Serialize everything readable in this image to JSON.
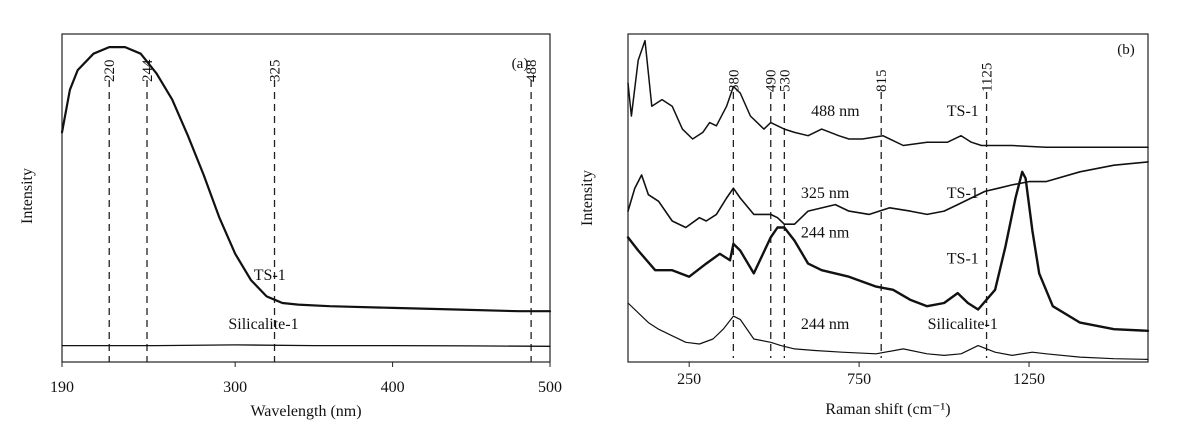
{
  "chart_data": [
    {
      "type": "line",
      "panel_label": "(a)",
      "xlabel": "Wavelength (nm)",
      "ylabel": "Intensity",
      "xlim": [
        190,
        500
      ],
      "ylim": [
        0,
        1
      ],
      "xticks": [
        190,
        300,
        400,
        500
      ],
      "xtick_labels": [
        "190",
        "300",
        "400",
        "500"
      ],
      "series": [
        {
          "name": "TS-1",
          "x": [
            190,
            195,
            200,
            210,
            220,
            230,
            240,
            250,
            260,
            270,
            280,
            290,
            300,
            310,
            320,
            325,
            330,
            340,
            360,
            400,
            440,
            480,
            500
          ],
          "y": [
            0.7,
            0.83,
            0.89,
            0.94,
            0.96,
            0.96,
            0.94,
            0.88,
            0.8,
            0.69,
            0.57,
            0.44,
            0.33,
            0.25,
            0.2,
            0.19,
            0.18,
            0.175,
            0.17,
            0.165,
            0.16,
            0.155,
            0.155
          ]
        },
        {
          "name": "Silicalite-1",
          "x": [
            190,
            250,
            300,
            350,
            400,
            450,
            500
          ],
          "y": [
            0.05,
            0.05,
            0.052,
            0.05,
            0.05,
            0.049,
            0.048
          ]
        }
      ],
      "annotations": [
        {
          "text": "220",
          "x": 220
        },
        {
          "text": "244",
          "x": 244
        },
        {
          "text": "325",
          "x": 325
        },
        {
          "text": "488",
          "x": 488
        }
      ],
      "curve_labels": [
        {
          "text": "TS-1",
          "x": 322,
          "y": 0.25
        },
        {
          "text": "Silicalite-1",
          "x": 318,
          "y": 0.1
        }
      ]
    },
    {
      "type": "line",
      "panel_label": "(b)",
      "xlabel": "Raman shift (cm⁻¹)",
      "ylabel": "Intensity",
      "xlim": [
        70,
        1600
      ],
      "ylim": [
        0,
        1
      ],
      "xticks": [
        250,
        750,
        1250
      ],
      "xtick_labels": [
        "250",
        "750",
        "1250"
      ],
      "series": [
        {
          "name": "488 nm TS-1",
          "x": [
            70,
            80,
            100,
            120,
            140,
            170,
            200,
            230,
            260,
            290,
            310,
            330,
            360,
            380,
            400,
            430,
            470,
            490,
            510,
            530,
            560,
            600,
            640,
            690,
            720,
            760,
            820,
            880,
            950,
            1010,
            1050,
            1080,
            1110,
            1150,
            1200,
            1300,
            1400,
            1600
          ],
          "y": [
            0.85,
            0.75,
            0.92,
            0.98,
            0.78,
            0.8,
            0.78,
            0.71,
            0.68,
            0.7,
            0.73,
            0.72,
            0.78,
            0.84,
            0.82,
            0.75,
            0.71,
            0.73,
            0.72,
            0.71,
            0.7,
            0.69,
            0.71,
            0.69,
            0.68,
            0.68,
            0.69,
            0.66,
            0.67,
            0.67,
            0.69,
            0.67,
            0.66,
            0.66,
            0.66,
            0.655,
            0.655,
            0.655
          ]
        },
        {
          "name": "325 nm TS-1",
          "x": [
            70,
            90,
            110,
            130,
            160,
            200,
            240,
            280,
            300,
            330,
            360,
            380,
            400,
            440,
            490,
            510,
            530,
            560,
            600,
            680,
            720,
            780,
            840,
            900,
            950,
            1000,
            1040,
            1080,
            1120,
            1160,
            1200,
            1250,
            1300,
            1400,
            1500,
            1600
          ],
          "y": [
            0.46,
            0.53,
            0.57,
            0.51,
            0.49,
            0.43,
            0.41,
            0.44,
            0.43,
            0.45,
            0.5,
            0.53,
            0.5,
            0.45,
            0.45,
            0.44,
            0.42,
            0.42,
            0.46,
            0.48,
            0.46,
            0.45,
            0.47,
            0.46,
            0.45,
            0.46,
            0.48,
            0.5,
            0.52,
            0.53,
            0.54,
            0.55,
            0.55,
            0.58,
            0.6,
            0.61
          ]
        },
        {
          "name": "244 nm TS-1",
          "x": [
            70,
            100,
            150,
            200,
            250,
            300,
            340,
            370,
            380,
            400,
            440,
            490,
            510,
            530,
            560,
            600,
            640,
            680,
            720,
            800,
            850,
            900,
            950,
            1000,
            1040,
            1070,
            1100,
            1150,
            1180,
            1210,
            1230,
            1240,
            1260,
            1280,
            1320,
            1400,
            1500,
            1600
          ],
          "y": [
            0.38,
            0.34,
            0.28,
            0.28,
            0.26,
            0.3,
            0.33,
            0.31,
            0.36,
            0.34,
            0.27,
            0.38,
            0.41,
            0.41,
            0.37,
            0.3,
            0.28,
            0.27,
            0.26,
            0.23,
            0.22,
            0.19,
            0.17,
            0.18,
            0.21,
            0.18,
            0.16,
            0.22,
            0.35,
            0.5,
            0.58,
            0.56,
            0.4,
            0.27,
            0.17,
            0.12,
            0.1,
            0.095
          ]
        },
        {
          "name": "244 nm Silicalite-1",
          "x": [
            70,
            100,
            130,
            160,
            200,
            240,
            280,
            320,
            350,
            380,
            400,
            440,
            490,
            520,
            560,
            620,
            700,
            800,
            880,
            950,
            1000,
            1050,
            1100,
            1150,
            1200,
            1260,
            1300,
            1400,
            1500,
            1600
          ],
          "y": [
            0.18,
            0.15,
            0.12,
            0.1,
            0.08,
            0.06,
            0.055,
            0.07,
            0.1,
            0.14,
            0.13,
            0.07,
            0.06,
            0.05,
            0.04,
            0.035,
            0.03,
            0.025,
            0.04,
            0.025,
            0.02,
            0.025,
            0.05,
            0.03,
            0.02,
            0.03,
            0.025,
            0.015,
            0.01,
            0.008
          ]
        }
      ],
      "annotations": [
        {
          "text": "380",
          "x": 380
        },
        {
          "text": "490",
          "x": 490
        },
        {
          "text": "530",
          "x": 530
        },
        {
          "text": "815",
          "x": 815
        },
        {
          "text": "1125",
          "x": 1125
        }
      ],
      "curve_labels": [
        {
          "text": "488 nm",
          "x": 680,
          "y": 0.75
        },
        {
          "text": "TS-1",
          "x": 1055,
          "y": 0.75
        },
        {
          "text": "325 nm",
          "x": 650,
          "y": 0.5
        },
        {
          "text": "TS-1",
          "x": 1055,
          "y": 0.5
        },
        {
          "text": "244 nm",
          "x": 650,
          "y": 0.38
        },
        {
          "text": "TS-1",
          "x": 1055,
          "y": 0.3
        },
        {
          "text": "244 nm",
          "x": 650,
          "y": 0.1
        },
        {
          "text": "Silicalite-1",
          "x": 1055,
          "y": 0.1
        }
      ]
    }
  ]
}
